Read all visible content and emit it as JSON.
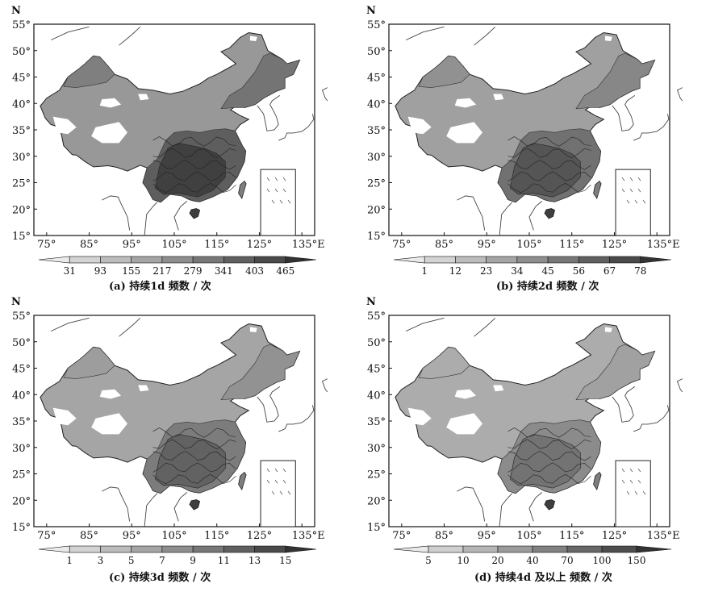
{
  "axis": {
    "north_label": "N",
    "lat_ticks": [
      "55°",
      "50°",
      "45°",
      "40°",
      "35°",
      "30°",
      "25°",
      "20°",
      "15°"
    ],
    "lon_ticks": [
      "75°",
      "85°",
      "95°",
      "105°",
      "115°",
      "125°",
      "135°E"
    ]
  },
  "panels": [
    {
      "id": "a",
      "caption": "(a) 持续1d 频数 / 次",
      "colorbar": [
        "31",
        "93",
        "155",
        "217",
        "279",
        "341",
        "403",
        "465"
      ],
      "level": 0.85
    },
    {
      "id": "b",
      "caption": "(b) 持续2d 频数 / 次",
      "colorbar": [
        "1",
        "12",
        "23",
        "34",
        "45",
        "56",
        "67",
        "78"
      ],
      "level": 0.6
    },
    {
      "id": "c",
      "caption": "(c) 持续3d 频数 / 次",
      "colorbar": [
        "1",
        "3",
        "5",
        "7",
        "9",
        "11",
        "13",
        "15"
      ],
      "level": 0.45
    },
    {
      "id": "d",
      "caption": "(d) 持续4d 及以上 频数 / 次",
      "colorbar": [
        "5",
        "10",
        "20",
        "40",
        "70",
        "100",
        "150"
      ],
      "level": 0.25
    }
  ]
}
